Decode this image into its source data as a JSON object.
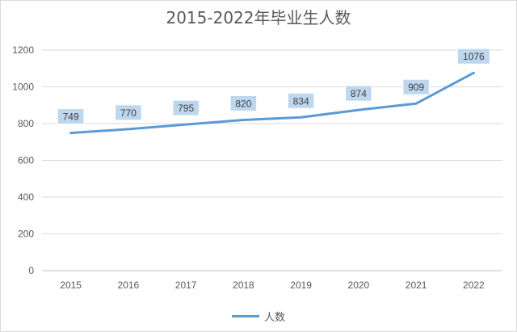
{
  "chart_data": {
    "type": "line",
    "title": "2015-2022年毕业生人数",
    "xlabel": "",
    "ylabel": "",
    "categories": [
      "2015",
      "2016",
      "2017",
      "2018",
      "2019",
      "2020",
      "2021",
      "2022"
    ],
    "series": [
      {
        "name": "人数",
        "values": [
          749,
          770,
          795,
          820,
          834,
          874,
          909,
          1076
        ],
        "color": "#5b9bd5"
      }
    ],
    "ylim": [
      0,
      1200
    ],
    "yticks": [
      0,
      200,
      400,
      600,
      800,
      1000,
      1200
    ],
    "grid": true,
    "legend_position": "bottom",
    "data_label_fill": "#bdd7ee"
  }
}
